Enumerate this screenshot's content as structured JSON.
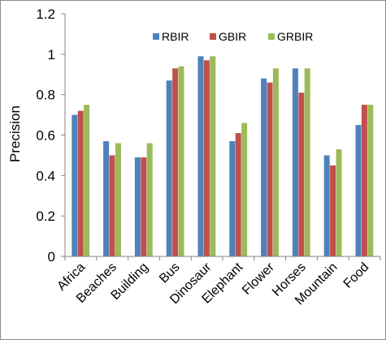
{
  "chart_data": {
    "type": "bar",
    "title": "",
    "xlabel": "",
    "ylabel": "Precision",
    "ylim": [
      0,
      1.2
    ],
    "yticks": [
      "0",
      "0.2",
      "0.4",
      "0.6",
      "0.8",
      "1",
      "1.2"
    ],
    "grid": false,
    "legend_position": "top-right",
    "categories": [
      "Africa",
      "Beaches",
      "Building",
      "Bus",
      "Dinosaur",
      "Elephant",
      "Flower",
      "Horses",
      "Mountain",
      "Food"
    ],
    "series": [
      {
        "name": "RBIR",
        "color": "#4f81bd",
        "values": [
          0.7,
          0.57,
          0.49,
          0.87,
          0.99,
          0.57,
          0.88,
          0.93,
          0.5,
          0.65
        ]
      },
      {
        "name": "GBIR",
        "color": "#c0504d",
        "values": [
          0.72,
          0.5,
          0.49,
          0.93,
          0.97,
          0.61,
          0.86,
          0.81,
          0.45,
          0.75
        ]
      },
      {
        "name": "GRBIR",
        "color": "#9bbb59",
        "values": [
          0.75,
          0.56,
          0.56,
          0.94,
          0.99,
          0.66,
          0.93,
          0.93,
          0.53,
          0.75
        ]
      }
    ]
  }
}
